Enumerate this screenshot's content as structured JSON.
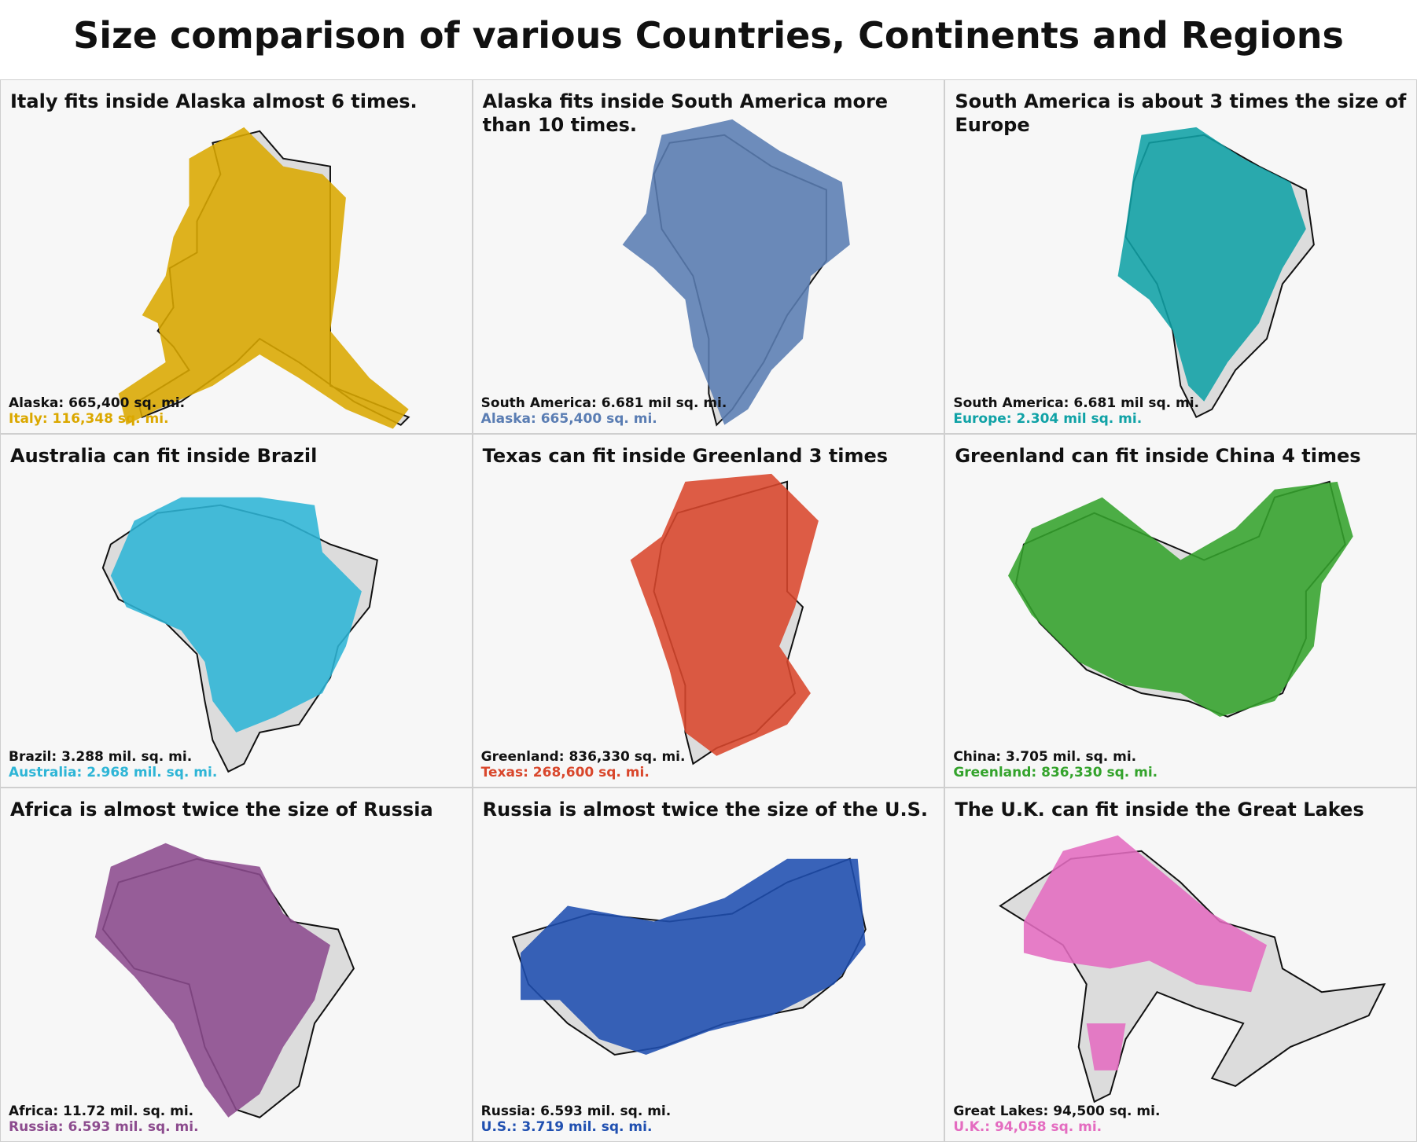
{
  "title": "Size comparison of various Countries, Continents and Regions",
  "panels": [
    {
      "title": "Italy fits inside Alaska almost 6 times.",
      "base": "Alaska: 665,400 sq. mi.",
      "overlay": "Italy: 116,348 sq. mi.",
      "color": "#dba800"
    },
    {
      "title": "Alaska fits inside South America more than 10 times.",
      "base": "South America: 6.681 mil sq. mi.",
      "overlay": "Alaska: 665,400 sq. mi.",
      "color": "#5a7db3"
    },
    {
      "title": "South America is about 3 times the size of Europe",
      "base": "South America: 6.681 mil sq. mi.",
      "overlay": "Europe: 2.304 mil sq. mi.",
      "color": "#10a2a6"
    },
    {
      "title": "Australia can fit inside Brazil",
      "base": "Brazil: 3.288 mil. sq. mi.",
      "overlay": "Australia: 2.968 mil. sq. mi.",
      "color": "#2eb5d6"
    },
    {
      "title": "Texas can fit inside Greenland 3 times",
      "base": "Greenland: 836,330 sq. mi.",
      "overlay": "Texas: 268,600 sq. mi.",
      "color": "#d9472c"
    },
    {
      "title": "Greenland can fit inside China 4 times",
      "base": "China: 3.705 mil. sq. mi.",
      "overlay": "Greenland: 836,330 sq. mi.",
      "color": "#34a32c"
    },
    {
      "title": "Africa is almost twice the size of Russia",
      "base": "Africa: 11.72 mil. sq. mi.",
      "overlay": "Russia: 6.593 mil. sq. mi.",
      "color": "#8c4b8e"
    },
    {
      "title": "Russia is almost twice the size of the U.S.",
      "base": "Russia: 6.593 mil. sq. mi.",
      "overlay": "U.S.: 3.719 mil. sq. mi.",
      "color": "#1f4fb0"
    },
    {
      "title": "The U.K. can fit inside the Great Lakes",
      "base": "Great Lakes: 94,500 sq. mi.",
      "overlay": "U.K.: 94,058 sq. mi.",
      "color": "#e46cc0"
    }
  ]
}
